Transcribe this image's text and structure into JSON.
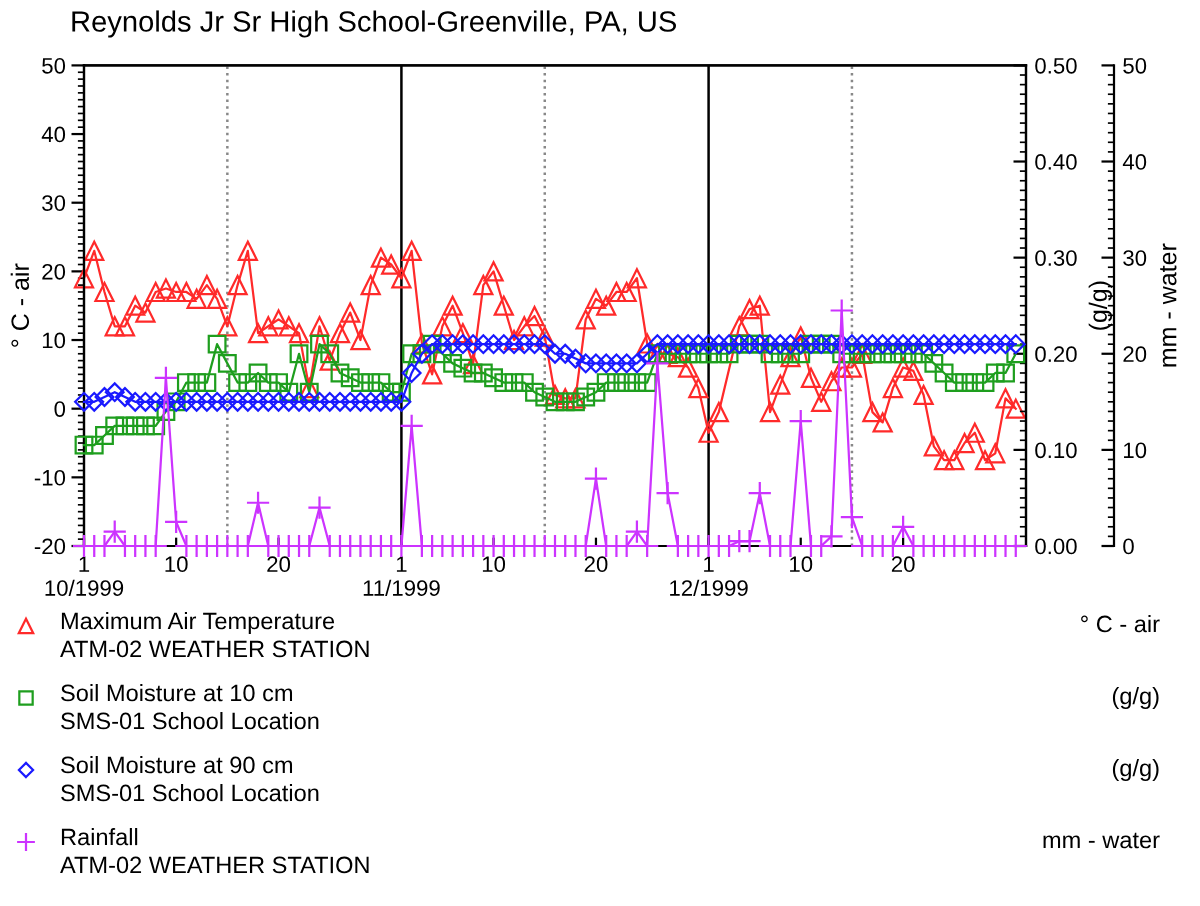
{
  "chart_data": {
    "type": "line",
    "title": "Reynolds Jr Sr High School-Greenville, PA, US",
    "ylabel": "° C - air",
    "y2label": "(g/g)",
    "y3label": "mm - water",
    "x": [
      "1999-10-01",
      "1999-10-02",
      "1999-10-03",
      "1999-10-04",
      "1999-10-05",
      "1999-10-06",
      "1999-10-07",
      "1999-10-08",
      "1999-10-09",
      "1999-10-10",
      "1999-10-11",
      "1999-10-12",
      "1999-10-13",
      "1999-10-14",
      "1999-10-15",
      "1999-10-16",
      "1999-10-17",
      "1999-10-18",
      "1999-10-19",
      "1999-10-20",
      "1999-10-21",
      "1999-10-22",
      "1999-10-23",
      "1999-10-24",
      "1999-10-25",
      "1999-10-26",
      "1999-10-27",
      "1999-10-28",
      "1999-10-29",
      "1999-10-30",
      "1999-10-31",
      "1999-11-01",
      "1999-11-02",
      "1999-11-03",
      "1999-11-04",
      "1999-11-05",
      "1999-11-06",
      "1999-11-07",
      "1999-11-08",
      "1999-11-09",
      "1999-11-10",
      "1999-11-11",
      "1999-11-12",
      "1999-11-13",
      "1999-11-14",
      "1999-11-15",
      "1999-11-16",
      "1999-11-17",
      "1999-11-18",
      "1999-11-19",
      "1999-11-20",
      "1999-11-21",
      "1999-11-22",
      "1999-11-23",
      "1999-11-24",
      "1999-11-25",
      "1999-11-26",
      "1999-11-27",
      "1999-11-28",
      "1999-11-29",
      "1999-11-30",
      "1999-12-01",
      "1999-12-02",
      "1999-12-03",
      "1999-12-04",
      "1999-12-05",
      "1999-12-06",
      "1999-12-07",
      "1999-12-08",
      "1999-12-09",
      "1999-12-10",
      "1999-12-11",
      "1999-12-12",
      "1999-12-13",
      "1999-12-14",
      "1999-12-15",
      "1999-12-16",
      "1999-12-17",
      "1999-12-18",
      "1999-12-19",
      "1999-12-20",
      "1999-12-21",
      "1999-12-22",
      "1999-12-23",
      "1999-12-24",
      "1999-12-25",
      "1999-12-26",
      "1999-12-27",
      "1999-12-28",
      "1999-12-29",
      "1999-12-30",
      "1999-12-31"
    ],
    "xlim": [
      "1999-10-01",
      "2000-01-01"
    ],
    "xticks": [
      {
        "value": "1999-10-01",
        "label": "1\n10/1999"
      },
      {
        "value": "1999-10-10",
        "label": "10"
      },
      {
        "value": "1999-10-20",
        "label": "20"
      },
      {
        "value": "1999-11-01",
        "label": "1\n11/1999"
      },
      {
        "value": "1999-11-10",
        "label": "10"
      },
      {
        "value": "1999-11-20",
        "label": "20"
      },
      {
        "value": "1999-12-01",
        "label": "1\n12/1999"
      },
      {
        "value": "1999-12-10",
        "label": "10"
      },
      {
        "value": "1999-12-20",
        "label": "20"
      }
    ],
    "ylim": [
      -20,
      50
    ],
    "yticks": [
      -20,
      -10,
      0,
      10,
      20,
      30,
      40,
      50
    ],
    "y2lim": [
      0,
      0.5
    ],
    "y2ticks": [
      {
        "value": 0,
        "label": "0.00"
      },
      {
        "value": 0.1,
        "label": "0.10"
      },
      {
        "value": 0.2,
        "label": "0.20"
      },
      {
        "value": 0.3,
        "label": "0.30"
      },
      {
        "value": 0.4,
        "label": "0.40"
      },
      {
        "value": 0.5,
        "label": "0.50"
      }
    ],
    "y3lim": [
      0,
      50
    ],
    "y3ticks": [
      0,
      10,
      20,
      30,
      40,
      50
    ],
    "ref_lines": [
      {
        "axis": "x",
        "value": "1999-10-15",
        "color": "#888888",
        "line_style": "dotted"
      },
      {
        "axis": "x",
        "value": "1999-11-01",
        "color": "#000000",
        "line_style": "solid"
      },
      {
        "axis": "x",
        "value": "1999-11-15",
        "color": "#888888",
        "line_style": "dotted"
      },
      {
        "axis": "x",
        "value": "1999-12-01",
        "color": "#000000",
        "line_style": "solid"
      },
      {
        "axis": "x",
        "value": "1999-12-15",
        "color": "#888888",
        "line_style": "dotted"
      }
    ],
    "legend": "bottom",
    "line_style": "solid",
    "series": [
      {
        "name": "Maximum Air Temperature\nATM-02 WEATHER STATION",
        "color": "#ff2a2a",
        "marker": "triangle",
        "axis": "y",
        "x": [
          "1999-10-01",
          "1999-10-02",
          "1999-10-03",
          "1999-10-04",
          "1999-10-05",
          "1999-10-06",
          "1999-10-07",
          "1999-10-08",
          "1999-10-09",
          "1999-10-10",
          "1999-10-11",
          "1999-10-12",
          "1999-10-13",
          "1999-10-14",
          "1999-10-15",
          "1999-10-16",
          "1999-10-17",
          "1999-10-18",
          "1999-10-19",
          "1999-10-20",
          "1999-10-21",
          "1999-10-22",
          "1999-10-23",
          "1999-10-24",
          "1999-10-25",
          "1999-10-26",
          "1999-10-27",
          "1999-10-28",
          "1999-10-29",
          "1999-10-30",
          "1999-10-31",
          "1999-11-01",
          "1999-11-02",
          "1999-11-03",
          "1999-11-04",
          "1999-11-05",
          "1999-11-06",
          "1999-11-07",
          "1999-11-08",
          "1999-11-09",
          "1999-11-10",
          "1999-11-11",
          "1999-11-12",
          "1999-11-13",
          "1999-11-14",
          "1999-11-15",
          "1999-11-16",
          "1999-11-17",
          "1999-11-18",
          "1999-11-19",
          "1999-11-20",
          "1999-11-21",
          "1999-11-22",
          "1999-11-23",
          "1999-11-24",
          "1999-11-25",
          "1999-11-26",
          "1999-11-27",
          "1999-11-28",
          "1999-11-29",
          "1999-11-30",
          "1999-12-01",
          "1999-12-02",
          "1999-12-04",
          "1999-12-05",
          "1999-12-06",
          "1999-12-07",
          "1999-12-08",
          "1999-12-09",
          "1999-12-10",
          "1999-12-11",
          "1999-12-12",
          "1999-12-13",
          "1999-12-14",
          "1999-12-15",
          "1999-12-16",
          "1999-12-17",
          "1999-12-18",
          "1999-12-19",
          "1999-12-20",
          "1999-12-21",
          "1999-12-22",
          "1999-12-23",
          "1999-12-24",
          "1999-12-25",
          "1999-12-26",
          "1999-12-27",
          "1999-12-28",
          "1999-12-29",
          "1999-12-30",
          "1999-12-31"
        ],
        "values": [
          19,
          23,
          17,
          12,
          12,
          15,
          14,
          17,
          17.5,
          17,
          17,
          16,
          18,
          16,
          12,
          18,
          23,
          11,
          12,
          13,
          12,
          11,
          3,
          12,
          7,
          11,
          14,
          10,
          18,
          22,
          21,
          19,
          23,
          9.5,
          5,
          12,
          15,
          11,
          6.5,
          18,
          20,
          15,
          10,
          12,
          13.5,
          10.5,
          2,
          1.5,
          1.5,
          13,
          16,
          15,
          17,
          17,
          19,
          9.5,
          8,
          8,
          7.5,
          6,
          3,
          -3.5,
          -0.5,
          12,
          14.5,
          15,
          -0.5,
          3.5,
          7.5,
          10.5,
          4.5,
          1,
          4,
          6,
          6,
          8,
          -0.5,
          -2,
          3,
          6,
          5.5,
          2,
          -5.5,
          -7.5,
          -7.5,
          -5,
          -3.5,
          -7.5,
          -6.5,
          1.5,
          0
        ]
      },
      {
        "name": "Soil Moisture at 10 cm\nSMS-01 School Location",
        "color": "#1e9e1e",
        "marker": "square",
        "axis": "y2",
        "values": [
          0.105,
          0.105,
          0.115,
          0.125,
          0.125,
          0.125,
          0.125,
          0.125,
          0.14,
          0.15,
          0.17,
          0.17,
          0.17,
          0.21,
          0.19,
          0.17,
          0.17,
          0.18,
          0.17,
          0.17,
          0.16,
          0.2,
          0.16,
          0.21,
          0.2,
          0.18,
          0.175,
          0.17,
          0.17,
          0.17,
          0.16,
          0.16,
          0.2,
          0.2,
          0.21,
          0.2,
          0.19,
          0.185,
          0.18,
          0.18,
          0.175,
          0.17,
          0.17,
          0.17,
          0.16,
          0.155,
          0.15,
          0.15,
          0.15,
          0.155,
          0.16,
          0.17,
          0.17,
          0.17,
          0.17,
          0.17,
          0.2,
          0.2,
          0.2,
          0.2,
          0.2,
          0.2,
          0.2,
          0.2,
          0.21,
          0.21,
          0.21,
          0.2,
          0.2,
          0.2,
          0.2,
          0.21,
          0.21,
          0.21,
          0.2,
          0.2,
          0.2,
          0.2,
          0.2,
          0.2,
          0.2,
          0.2,
          0.2,
          0.19,
          0.18,
          0.17,
          0.17,
          0.17,
          0.17,
          0.18,
          0.18,
          0.2
        ]
      },
      {
        "name": "Soil Moisture at 90 cm\nSMS-01 School Location",
        "color": "#1a1aff",
        "marker": "diamond",
        "axis": "y2",
        "values": [
          0.15,
          0.15,
          0.155,
          0.16,
          0.155,
          0.15,
          0.15,
          0.15,
          0.15,
          0.15,
          0.15,
          0.15,
          0.15,
          0.15,
          0.15,
          0.15,
          0.15,
          0.15,
          0.15,
          0.15,
          0.15,
          0.15,
          0.15,
          0.15,
          0.15,
          0.15,
          0.15,
          0.15,
          0.15,
          0.15,
          0.15,
          0.15,
          0.18,
          0.2,
          0.21,
          0.21,
          0.21,
          0.21,
          0.21,
          0.21,
          0.21,
          0.21,
          0.21,
          0.21,
          0.21,
          0.21,
          0.2,
          0.2,
          0.195,
          0.19,
          0.19,
          0.19,
          0.19,
          0.19,
          0.19,
          0.2,
          0.21,
          0.21,
          0.21,
          0.21,
          0.21,
          0.21,
          0.21,
          0.21,
          0.21,
          0.21,
          0.21,
          0.21,
          0.21,
          0.21,
          0.21,
          0.21,
          0.21,
          0.21,
          0.21,
          0.21,
          0.21,
          0.21,
          0.21,
          0.21,
          0.21,
          0.21,
          0.21,
          0.21,
          0.21,
          0.21,
          0.21,
          0.21,
          0.21,
          0.21,
          0.21,
          0.21
        ]
      },
      {
        "name": "Rainfall\nATM-02 WEATHER STATION",
        "color": "#cc33ff",
        "marker": "cross",
        "axis": "y3",
        "values": [
          0,
          0,
          0,
          1.5,
          0,
          0,
          0,
          0,
          17.5,
          2.5,
          0,
          0,
          0,
          0,
          0,
          0,
          0,
          4.5,
          0,
          0,
          0,
          0,
          0,
          4,
          0,
          0,
          0,
          0,
          0,
          0,
          0,
          0,
          12.5,
          0,
          0,
          0,
          0,
          0,
          0,
          0,
          0,
          0,
          0,
          0,
          0,
          0,
          0,
          0,
          0,
          0,
          7,
          0,
          0,
          0,
          1.5,
          0,
          19,
          5.5,
          0,
          0,
          0,
          0,
          0,
          0,
          0.5,
          0.5,
          5.5,
          0,
          0,
          0,
          13,
          0,
          0,
          1,
          24.5,
          3,
          0,
          0,
          0,
          0,
          2,
          0,
          0,
          0,
          0,
          0,
          0,
          0,
          0,
          0,
          0,
          0
        ]
      }
    ]
  }
}
